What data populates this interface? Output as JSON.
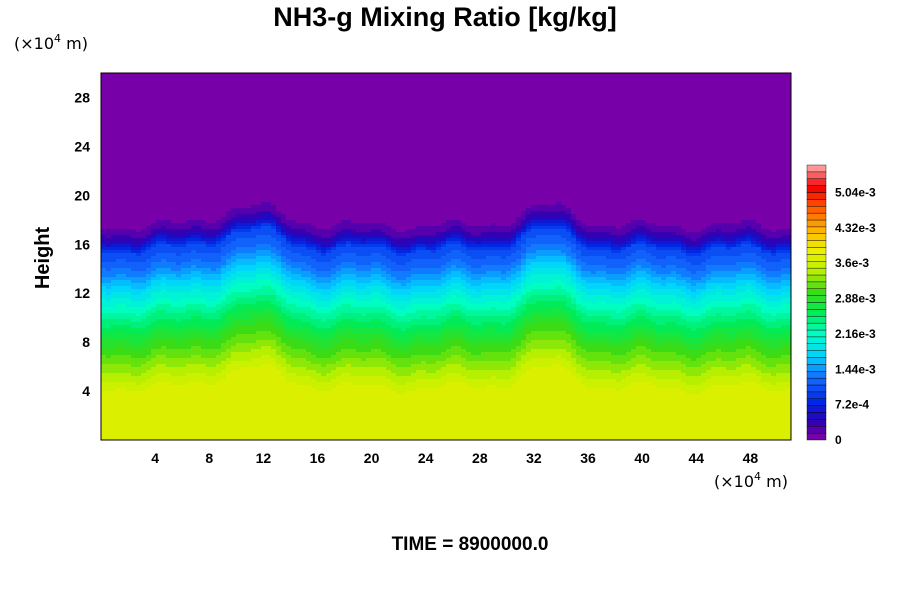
{
  "chart_data": {
    "type": "heatmap",
    "title": "NH3-g Mixing Ratio [kg/kg]",
    "ylabel": "Height",
    "x_unit": {
      "prefix": "(×10",
      "exp": "4",
      "suffix": " m)"
    },
    "y_unit": {
      "prefix": "(×10",
      "exp": "4",
      "suffix": " m)"
    },
    "xlim": [
      0,
      51
    ],
    "ylim": [
      0,
      30
    ],
    "x_ticks": [
      4,
      8,
      12,
      16,
      20,
      24,
      28,
      32,
      36,
      40,
      44,
      48
    ],
    "y_ticks": [
      4,
      8,
      12,
      16,
      20,
      24,
      28
    ],
    "time_label": "TIME = 8900000.0",
    "colorbar": {
      "min": 0,
      "max": 0.0056,
      "levels": 40,
      "tick_labels": [
        "0",
        "7.2e-4",
        "1.44e-3",
        "2.16e-3",
        "2.88e-3",
        "3.6e-3",
        "4.32e-3",
        "5.04e-3"
      ],
      "tick_values": [
        0,
        0.00072,
        0.00144,
        0.00216,
        0.00288,
        0.0036,
        0.00432,
        0.00504
      ]
    },
    "vertical_profile": [
      {
        "height": 0,
        "value": 0.0037
      },
      {
        "height": 4,
        "value": 0.0037
      },
      {
        "height": 6,
        "value": 0.0033
      },
      {
        "height": 8,
        "value": 0.0029
      },
      {
        "height": 10,
        "value": 0.0024
      },
      {
        "height": 12,
        "value": 0.0019
      },
      {
        "height": 14,
        "value": 0.0013
      },
      {
        "height": 15.5,
        "value": 0.001
      },
      {
        "height": 16.3,
        "value": 0.0005
      },
      {
        "height": 17.0,
        "value": 0.00025
      },
      {
        "height": 17.6,
        "value": 0.00012
      },
      {
        "height": 18.2,
        "value": 0.0
      },
      {
        "height": 30,
        "value": 0.0
      }
    ],
    "features": [
      {
        "x": 11,
        "height": 16.3,
        "amplitude": 1.6,
        "width": 3.2
      },
      {
        "x": 33,
        "height": 15.8,
        "amplitude": 1.6,
        "width": 2.8
      }
    ]
  }
}
